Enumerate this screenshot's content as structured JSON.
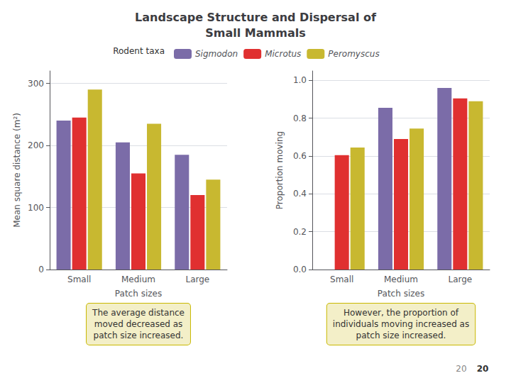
{
  "title": "Landscape Structure and Dispersal of\nSmall Mammals",
  "page_numbers": [
    "20",
    "20"
  ],
  "chart_data": [
    {
      "type": "bar",
      "categories": [
        "Small",
        "Medium",
        "Large"
      ],
      "series": [
        {
          "name": "Sigmodon",
          "color": "#7b6ca8",
          "values": [
            240,
            205,
            185
          ]
        },
        {
          "name": "Microtus",
          "color": "#e03030",
          "values": [
            245,
            155,
            120
          ]
        },
        {
          "name": "Peromyscus",
          "color": "#c8b830",
          "values": [
            290,
            235,
            145
          ]
        }
      ],
      "xlabel": "Patch sizes",
      "ylabel": "Mean square distance (m²)",
      "ylim": [
        0,
        320
      ],
      "yticks": [
        0,
        100,
        200,
        300
      ],
      "grid": true,
      "legend": "top",
      "legend_title": "Rodent taxa",
      "annotation": "The average distance\nmoved decreased as\npatch size increased."
    },
    {
      "type": "bar",
      "categories": [
        "Small",
        "Medium",
        "Large"
      ],
      "series": [
        {
          "name": "Sigmodon",
          "color": "#7b6ca8",
          "values": [
            0.0,
            0.855,
            0.96
          ]
        },
        {
          "name": "Microtus",
          "color": "#e03030",
          "values": [
            0.605,
            0.69,
            0.905
          ]
        },
        {
          "name": "Peromyscus",
          "color": "#c8b830",
          "values": [
            0.645,
            0.745,
            0.89
          ]
        }
      ],
      "xlabel": "Patch sizes",
      "ylabel": "Proportion moving",
      "ylim": [
        0.0,
        1.05
      ],
      "yticks": [
        {
          "value": 0.0,
          "label": "0.0"
        },
        0.2,
        0.4,
        0.6,
        0.8,
        {
          "value": 1.0,
          "label": "1.0"
        }
      ],
      "grid": true,
      "annotation": "However, the proportion of\nindividuals moving increased as\npatch size increased."
    }
  ]
}
